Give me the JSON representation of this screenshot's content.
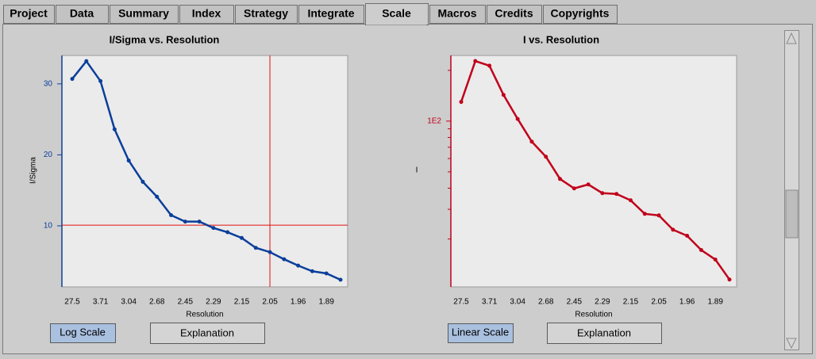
{
  "tabs": [
    "Project",
    "Data",
    "Summary",
    "Index",
    "Strategy",
    "Integrate",
    "Scale",
    "Macros",
    "Credits",
    "Copyrights"
  ],
  "chart_data": [
    {
      "type": "line",
      "title": "I/Sigma vs. Resolution",
      "x_label": "Resolution",
      "y_label": "I/Sigma",
      "categories": [
        "27.5",
        null,
        "3.71",
        null,
        "3.04",
        null,
        "2.68",
        null,
        "2.45",
        null,
        "2.29",
        null,
        "2.15",
        null,
        "2.05",
        null,
        "1.96",
        null,
        "1.89",
        null
      ],
      "values": [
        30.7,
        33.2,
        30.4,
        23.6,
        19.2,
        16.2,
        14.1,
        11.5,
        10.6,
        10.6,
        9.7,
        9.1,
        8.3,
        6.9,
        6.3,
        5.3,
        4.4,
        3.6,
        3.3,
        2.4
      ],
      "color": "#0b3f9a",
      "ylim": [
        1.4,
        34
      ],
      "yticks": [
        10,
        20,
        30
      ],
      "log_scale": false,
      "crosshair": {
        "category": "2.05",
        "value": 10.1,
        "color": "#e01010"
      }
    },
    {
      "type": "line",
      "title": "I vs. Resolution",
      "x_label": "Resolution",
      "y_label": "I",
      "categories": [
        "27.5",
        null,
        "3.71",
        null,
        "3.04",
        null,
        "2.68",
        null,
        "2.45",
        null,
        "2.29",
        null,
        "2.15",
        null,
        "2.05",
        null,
        "1.96",
        null,
        "1.89",
        null
      ],
      "values": [
        130,
        227,
        213,
        143,
        103,
        75.5,
        61.5,
        45.4,
        39.9,
        42.1,
        37.4,
        37.0,
        33.9,
        28.2,
        27.6,
        22.7,
        20.9,
        17.2,
        15.1,
        11.5
      ],
      "color": "#c0001a",
      "ylim": [
        10.4,
        245
      ],
      "yticks": [
        {
          "value": 100,
          "label": "1E2"
        }
      ],
      "minor_yticks": [
        20,
        30,
        40,
        50,
        60,
        70,
        80,
        90,
        200
      ],
      "log_scale": true
    }
  ],
  "controls": [
    {
      "scale_button": "Log Scale",
      "explain_button": "Explanation"
    },
    {
      "scale_button": "Linear Scale",
      "explain_button": "Explanation"
    }
  ]
}
